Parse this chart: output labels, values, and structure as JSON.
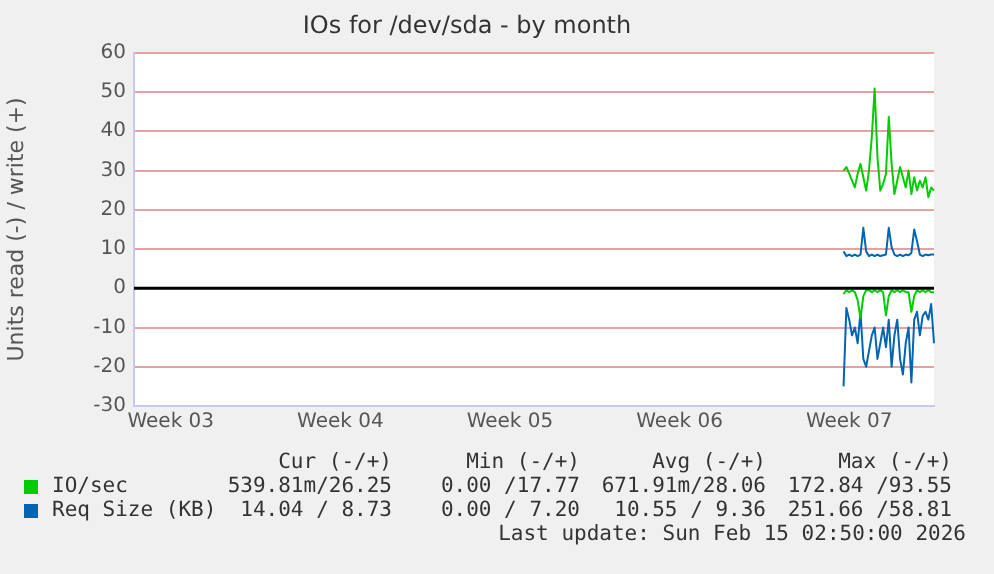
{
  "chart_data": {
    "type": "line",
    "title": "IOs for /dev/sda - by month",
    "ylabel": "Units read (-) / write (+)",
    "categories": [
      null,
      null,
      null,
      null,
      null,
      null,
      null,
      null,
      null,
      null,
      null,
      null,
      null,
      "Week 03",
      null,
      null,
      null,
      null,
      null,
      null,
      null,
      null,
      null,
      null,
      null,
      null,
      null,
      null,
      null,
      null,
      null,
      null,
      null,
      null,
      null,
      null,
      null,
      null,
      null,
      null,
      null,
      null,
      null,
      null,
      null,
      null,
      null,
      null,
      null,
      null,
      null,
      null,
      null,
      null,
      null,
      null,
      null,
      null,
      null,
      null,
      null,
      null,
      null,
      null,
      null,
      null,
      null,
      null,
      null,
      null,
      null,
      null,
      null,
      "Week 04",
      null,
      null,
      null,
      null,
      null,
      null,
      null,
      null,
      null,
      null,
      null,
      null,
      null,
      null,
      null,
      null,
      null,
      null,
      null,
      null,
      null,
      null,
      null,
      null,
      null,
      null,
      null,
      null,
      null,
      null,
      null,
      null,
      null,
      null,
      null,
      null,
      null,
      null,
      null,
      null,
      null,
      null,
      null,
      null,
      null,
      null,
      null,
      null,
      null,
      null,
      null,
      null,
      null,
      null,
      null,
      null,
      null,
      null,
      null,
      "Week 05",
      null,
      null,
      null,
      null,
      null,
      null,
      null,
      null,
      null,
      null,
      null,
      null,
      null,
      null,
      null,
      null,
      null,
      null,
      null,
      null,
      null,
      null,
      null,
      null,
      null,
      null,
      null,
      null,
      null,
      null,
      null,
      null,
      null,
      null,
      null,
      null,
      null,
      null,
      null,
      null,
      null,
      null,
      null,
      null,
      null,
      null,
      null,
      null,
      null,
      null,
      null,
      null,
      null,
      null,
      null,
      null,
      null,
      null,
      null,
      "Week 06",
      null,
      null,
      null,
      null,
      null,
      null,
      null,
      null,
      null,
      null,
      null,
      null,
      null,
      null,
      null,
      null,
      null,
      null,
      null,
      null,
      null,
      null,
      null,
      null,
      null,
      null,
      null,
      null,
      null,
      null,
      null,
      null,
      null,
      null,
      null,
      null,
      null,
      null,
      null,
      null,
      null,
      null,
      null,
      null,
      null,
      null,
      null,
      null,
      null,
      null,
      null,
      null,
      null,
      null,
      null,
      null,
      null,
      null,
      null,
      "Week 07",
      null,
      null,
      null,
      null,
      null,
      null,
      null,
      null,
      null,
      null,
      null,
      null,
      null,
      null,
      null,
      null,
      null,
      null,
      null,
      null,
      null,
      null,
      null,
      null,
      null,
      null,
      null,
      null,
      null,
      null
    ],
    "ylim": [
      -30,
      60
    ],
    "yticks": [
      -30,
      -20,
      -10,
      0,
      10,
      20,
      30,
      40,
      50,
      60
    ],
    "grid": "y",
    "legend": "bottom",
    "marker": "none",
    "line_style": "solid",
    "ref_lines": [
      {
        "axis": "y",
        "value": 0,
        "color": "#000000"
      }
    ],
    "annotations": [
      "Cur (-/+)",
      "Min (-/+)",
      "Avg (-/+)",
      "Max (-/+)",
      "539.81m/26.25",
      "0.00 /17.77",
      "671.91m/28.06",
      "172.84 /93.55",
      "14.04 / 8.73",
      "0.00 / 7.20",
      "10.55 / 9.36",
      "251.66 /58.81",
      "Last update: Sun Feb 15 02:50:00 2026"
    ],
    "series": [
      {
        "name": "IO/sec",
        "color": "#00cc00",
        "values": [
          null,
          null,
          null,
          null,
          null,
          null,
          null,
          null,
          null,
          null,
          null,
          null,
          null,
          null,
          null,
          null,
          null,
          null,
          null,
          null,
          null,
          null,
          null,
          null,
          null,
          null,
          null,
          null,
          null,
          null,
          null,
          null,
          null,
          null,
          null,
          null,
          null,
          null,
          null,
          null,
          null,
          null,
          null,
          null,
          null,
          null,
          null,
          null,
          null,
          null,
          null,
          null,
          null,
          null,
          null,
          null,
          null,
          null,
          null,
          null,
          null,
          null,
          null,
          null,
          null,
          null,
          null,
          null,
          null,
          null,
          null,
          null,
          null,
          null,
          null,
          null,
          null,
          null,
          null,
          null,
          null,
          null,
          null,
          null,
          null,
          null,
          null,
          null,
          null,
          null,
          null,
          null,
          null,
          null,
          null,
          null,
          null,
          null,
          null,
          null,
          null,
          null,
          null,
          null,
          null,
          null,
          null,
          null,
          null,
          null,
          null,
          null,
          null,
          null,
          null,
          null,
          null,
          null,
          null,
          null,
          null,
          null,
          null,
          null,
          null,
          null,
          null,
          null,
          null,
          null,
          null,
          null,
          null,
          null,
          null,
          null,
          null,
          null,
          null,
          null,
          null,
          null,
          null,
          null,
          null,
          null,
          null,
          null,
          null,
          null,
          null,
          null,
          null,
          null,
          null,
          null,
          null,
          null,
          null,
          null,
          null,
          null,
          null,
          null,
          null,
          null,
          null,
          null,
          null,
          null,
          null,
          null,
          null,
          null,
          null,
          null,
          null,
          null,
          null,
          null,
          null,
          null,
          null,
          null,
          null,
          null,
          null,
          null,
          null,
          null,
          null,
          null,
          null,
          null,
          null,
          null,
          null,
          null,
          null,
          null,
          null,
          null,
          null,
          null,
          null,
          null,
          null,
          null,
          null,
          null,
          null,
          null,
          null,
          null,
          null,
          null,
          null,
          null,
          null,
          null,
          null,
          null,
          null,
          null,
          null,
          null,
          null,
          null,
          null,
          null,
          null,
          null,
          null,
          null,
          null,
          null,
          null,
          null,
          null,
          null,
          null,
          null,
          null,
          null,
          null,
          null,
          null,
          null,
          null,
          null,
          null,
          30.0,
          30.9,
          29.2,
          27.4,
          25.7,
          29.2,
          31.7,
          28.3,
          24.9,
          30.0,
          38.6,
          50.9,
          33.4,
          24.9,
          26.6,
          29.2,
          43.7,
          31.7,
          24.0,
          27.4,
          30.9,
          28.3,
          25.7,
          30.0,
          24.0,
          28.3,
          24.9,
          27.4,
          25.7,
          28.3,
          23.2,
          25.7,
          24.9
        ]
      },
      {
        "color": "#00cc00",
        "values": [
          null,
          null,
          null,
          null,
          null,
          null,
          null,
          null,
          null,
          null,
          null,
          null,
          null,
          null,
          null,
          null,
          null,
          null,
          null,
          null,
          null,
          null,
          null,
          null,
          null,
          null,
          null,
          null,
          null,
          null,
          null,
          null,
          null,
          null,
          null,
          null,
          null,
          null,
          null,
          null,
          null,
          null,
          null,
          null,
          null,
          null,
          null,
          null,
          null,
          null,
          null,
          null,
          null,
          null,
          null,
          null,
          null,
          null,
          null,
          null,
          null,
          null,
          null,
          null,
          null,
          null,
          null,
          null,
          null,
          null,
          null,
          null,
          null,
          null,
          null,
          null,
          null,
          null,
          null,
          null,
          null,
          null,
          null,
          null,
          null,
          null,
          null,
          null,
          null,
          null,
          null,
          null,
          null,
          null,
          null,
          null,
          null,
          null,
          null,
          null,
          null,
          null,
          null,
          null,
          null,
          null,
          null,
          null,
          null,
          null,
          null,
          null,
          null,
          null,
          null,
          null,
          null,
          null,
          null,
          null,
          null,
          null,
          null,
          null,
          null,
          null,
          null,
          null,
          null,
          null,
          null,
          null,
          null,
          null,
          null,
          null,
          null,
          null,
          null,
          null,
          null,
          null,
          null,
          null,
          null,
          null,
          null,
          null,
          null,
          null,
          null,
          null,
          null,
          null,
          null,
          null,
          null,
          null,
          null,
          null,
          null,
          null,
          null,
          null,
          null,
          null,
          null,
          null,
          null,
          null,
          null,
          null,
          null,
          null,
          null,
          null,
          null,
          null,
          null,
          null,
          null,
          null,
          null,
          null,
          null,
          null,
          null,
          null,
          null,
          null,
          null,
          null,
          null,
          null,
          null,
          null,
          null,
          null,
          null,
          null,
          null,
          null,
          null,
          null,
          null,
          null,
          null,
          null,
          null,
          null,
          null,
          null,
          null,
          null,
          null,
          null,
          null,
          null,
          null,
          null,
          null,
          null,
          null,
          null,
          null,
          null,
          null,
          null,
          null,
          null,
          null,
          null,
          null,
          null,
          null,
          null,
          null,
          null,
          null,
          null,
          null,
          null,
          null,
          null,
          null,
          null,
          null,
          null,
          null,
          null,
          null,
          -1.5,
          -0.5,
          -1,
          -0.5,
          -1,
          -3,
          -7.7,
          -2,
          -0.5,
          -0.5,
          -1,
          -0.5,
          -1,
          -0.5,
          -1,
          -6.9,
          -2,
          -0.5,
          -1,
          -0.5,
          -1,
          -0.5,
          -1,
          -1,
          -6,
          -2,
          -0.5,
          -1,
          -0.5,
          -1,
          -0.5,
          -1,
          -1
        ]
      },
      {
        "name": "Req Size (KB)",
        "color": "#0066b3",
        "values": [
          null,
          null,
          null,
          null,
          null,
          null,
          null,
          null,
          null,
          null,
          null,
          null,
          null,
          null,
          null,
          null,
          null,
          null,
          null,
          null,
          null,
          null,
          null,
          null,
          null,
          null,
          null,
          null,
          null,
          null,
          null,
          null,
          null,
          null,
          null,
          null,
          null,
          null,
          null,
          null,
          null,
          null,
          null,
          null,
          null,
          null,
          null,
          null,
          null,
          null,
          null,
          null,
          null,
          null,
          null,
          null,
          null,
          null,
          null,
          null,
          null,
          null,
          null,
          null,
          null,
          null,
          null,
          null,
          null,
          null,
          null,
          null,
          null,
          null,
          null,
          null,
          null,
          null,
          null,
          null,
          null,
          null,
          null,
          null,
          null,
          null,
          null,
          null,
          null,
          null,
          null,
          null,
          null,
          null,
          null,
          null,
          null,
          null,
          null,
          null,
          null,
          null,
          null,
          null,
          null,
          null,
          null,
          null,
          null,
          null,
          null,
          null,
          null,
          null,
          null,
          null,
          null,
          null,
          null,
          null,
          null,
          null,
          null,
          null,
          null,
          null,
          null,
          null,
          null,
          null,
          null,
          null,
          null,
          null,
          null,
          null,
          null,
          null,
          null,
          null,
          null,
          null,
          null,
          null,
          null,
          null,
          null,
          null,
          null,
          null,
          null,
          null,
          null,
          null,
          null,
          null,
          null,
          null,
          null,
          null,
          null,
          null,
          null,
          null,
          null,
          null,
          null,
          null,
          null,
          null,
          null,
          null,
          null,
          null,
          null,
          null,
          null,
          null,
          null,
          null,
          null,
          null,
          null,
          null,
          null,
          null,
          null,
          null,
          null,
          null,
          null,
          null,
          null,
          null,
          null,
          null,
          null,
          null,
          null,
          null,
          null,
          null,
          null,
          null,
          null,
          null,
          null,
          null,
          null,
          null,
          null,
          null,
          null,
          null,
          null,
          null,
          null,
          null,
          null,
          null,
          null,
          null,
          null,
          null,
          null,
          null,
          null,
          null,
          null,
          null,
          null,
          null,
          null,
          null,
          null,
          null,
          null,
          null,
          null,
          null,
          null,
          null,
          null,
          null,
          null,
          null,
          null,
          null,
          null,
          null,
          null,
          9.4,
          8.2,
          8.6,
          8.2,
          8.6,
          8.2,
          8.6,
          15.4,
          9.4,
          8.2,
          8.6,
          8.2,
          8.6,
          8.2,
          8.4,
          8.6,
          15.4,
          10.5,
          8.6,
          8.2,
          8.6,
          8.2,
          8.6,
          8.4,
          9.0,
          15.0,
          12.0,
          8.6,
          8.2,
          8.6,
          8.4,
          8.6,
          8.6
        ]
      },
      {
        "color": "#0066b3",
        "values": [
          null,
          null,
          null,
          null,
          null,
          null,
          null,
          null,
          null,
          null,
          null,
          null,
          null,
          null,
          null,
          null,
          null,
          null,
          null,
          null,
          null,
          null,
          null,
          null,
          null,
          null,
          null,
          null,
          null,
          null,
          null,
          null,
          null,
          null,
          null,
          null,
          null,
          null,
          null,
          null,
          null,
          null,
          null,
          null,
          null,
          null,
          null,
          null,
          null,
          null,
          null,
          null,
          null,
          null,
          null,
          null,
          null,
          null,
          null,
          null,
          null,
          null,
          null,
          null,
          null,
          null,
          null,
          null,
          null,
          null,
          null,
          null,
          null,
          null,
          null,
          null,
          null,
          null,
          null,
          null,
          null,
          null,
          null,
          null,
          null,
          null,
          null,
          null,
          null,
          null,
          null,
          null,
          null,
          null,
          null,
          null,
          null,
          null,
          null,
          null,
          null,
          null,
          null,
          null,
          null,
          null,
          null,
          null,
          null,
          null,
          null,
          null,
          null,
          null,
          null,
          null,
          null,
          null,
          null,
          null,
          null,
          null,
          null,
          null,
          null,
          null,
          null,
          null,
          null,
          null,
          null,
          null,
          null,
          null,
          null,
          null,
          null,
          null,
          null,
          null,
          null,
          null,
          null,
          null,
          null,
          null,
          null,
          null,
          null,
          null,
          null,
          null,
          null,
          null,
          null,
          null,
          null,
          null,
          null,
          null,
          null,
          null,
          null,
          null,
          null,
          null,
          null,
          null,
          null,
          null,
          null,
          null,
          null,
          null,
          null,
          null,
          null,
          null,
          null,
          null,
          null,
          null,
          null,
          null,
          null,
          null,
          null,
          null,
          null,
          null,
          null,
          null,
          null,
          null,
          null,
          null,
          null,
          null,
          null,
          null,
          null,
          null,
          null,
          null,
          null,
          null,
          null,
          null,
          null,
          null,
          null,
          null,
          null,
          null,
          null,
          null,
          null,
          null,
          null,
          null,
          null,
          null,
          null,
          null,
          null,
          null,
          null,
          null,
          null,
          null,
          null,
          null,
          null,
          null,
          null,
          null,
          null,
          null,
          null,
          null,
          null,
          null,
          null,
          null,
          null,
          null,
          null,
          null,
          null,
          null,
          null,
          -25,
          -5,
          -8,
          -12,
          -10,
          -14,
          -6,
          -18,
          -20,
          -16,
          -12,
          -10,
          -18,
          -14,
          -10,
          -15,
          -8,
          -20,
          -12,
          -8,
          -18,
          -22,
          -14,
          -10,
          -24,
          -8,
          -6,
          -12,
          -7,
          -6,
          -8,
          -4,
          -14
        ]
      }
    ]
  }
}
